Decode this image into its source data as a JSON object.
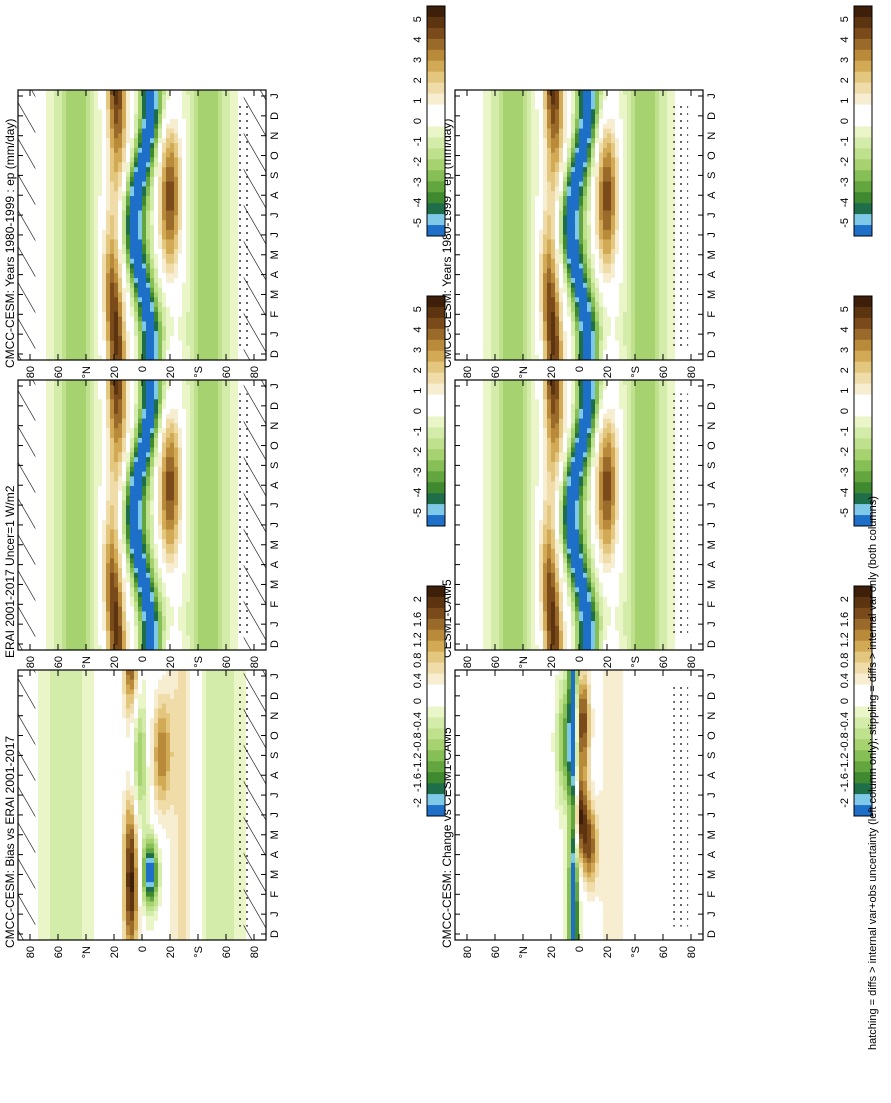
{
  "figure": {
    "footnote": "hatching = diffs > internal var+obs uncertainty (left column only); stippling = diffs > internal var only (both columns)"
  },
  "palettes": {
    "field": [
      "#3d1f0a",
      "#5c3410",
      "#7a4a1a",
      "#9a6a2a",
      "#b88a3a",
      "#d2aa55",
      "#e3c77e",
      "#efdca8",
      "#f7eed2",
      "#ffffff",
      "#ffffff",
      "#eaf5c8",
      "#d4ecaa",
      "#bfe08c",
      "#a6d270",
      "#86bf55",
      "#63a640",
      "#3f8a2e",
      "#1f6e4a",
      "#7ec8e8",
      "#1e6fc8"
    ],
    "diff": [
      "#3d1f0a",
      "#5c3410",
      "#7a4a1a",
      "#9a6a2a",
      "#b88a3a",
      "#d2aa55",
      "#e3c77e",
      "#efdca8",
      "#f7eed2",
      "#ffffff",
      "#ffffff",
      "#eaf5c8",
      "#d4ecaa",
      "#bfe08c",
      "#a6d270",
      "#86bf55",
      "#63a640",
      "#3f8a2e",
      "#1f6e4a",
      "#7ec8e8",
      "#1e6fc8"
    ]
  },
  "axes": {
    "lat_ticks": [
      "80",
      "60",
      "°N",
      "20",
      "0",
      "20",
      "°S",
      "60",
      "80"
    ],
    "month_ticks": [
      "D",
      "J",
      "F",
      "M",
      "A",
      "M",
      "J",
      "J",
      "A",
      "S",
      "O",
      "N",
      "D",
      "J"
    ]
  },
  "colorbars": {
    "field_labels": [
      "5",
      "4",
      "3",
      "2",
      "1",
      "0",
      "-1",
      "-2",
      "-3",
      "-4",
      "-5"
    ],
    "diff_labels": [
      "2",
      "1.6",
      "1.2",
      "0.8",
      "0.4",
      "0",
      "-0.4",
      "-0.8",
      "-1.2",
      "-1.6",
      "-2"
    ]
  },
  "chart_data": [
    {
      "type": "heatmap",
      "title": "CMCC-CESM: Years 1980-1999 : ep (mm/day)",
      "xlabel": "",
      "ylabel": "",
      "x": [
        "D",
        "J",
        "F",
        "M",
        "A",
        "M",
        "J",
        "J",
        "A",
        "S",
        "O",
        "N",
        "D",
        "J"
      ],
      "y_range": [
        -90,
        90
      ],
      "color_range": [
        -5,
        5
      ],
      "field": "mean",
      "hatching": true
    },
    {
      "type": "heatmap",
      "title": "CMCC-CESM: Years 1980-1999 : ep (mm/day)",
      "xlabel": "",
      "ylabel": "",
      "x": [
        "D",
        "J",
        "F",
        "M",
        "A",
        "M",
        "J",
        "J",
        "A",
        "S",
        "O",
        "N",
        "D",
        "J"
      ],
      "y_range": [
        -90,
        90
      ],
      "color_range": [
        -5,
        5
      ],
      "field": "mean",
      "hatching": false
    },
    {
      "type": "heatmap",
      "title": "ERAI 2001-2017 Uncer=1 W/m2",
      "xlabel": "",
      "ylabel": "",
      "x": [
        "D",
        "J",
        "F",
        "M",
        "A",
        "M",
        "J",
        "J",
        "A",
        "S",
        "O",
        "N",
        "D",
        "J"
      ],
      "y_range": [
        -90,
        90
      ],
      "color_range": [
        -5,
        5
      ],
      "field": "mean",
      "hatching": true
    },
    {
      "type": "heatmap",
      "title": "CESM1-CAM5",
      "xlabel": "",
      "ylabel": "",
      "x": [
        "D",
        "J",
        "F",
        "M",
        "A",
        "M",
        "J",
        "J",
        "A",
        "S",
        "O",
        "N",
        "D",
        "J"
      ],
      "y_range": [
        -90,
        90
      ],
      "color_range": [
        -5,
        5
      ],
      "field": "mean",
      "hatching": false
    },
    {
      "type": "heatmap",
      "title": "CMCC-CESM: Bias vs ERAI 2001-2017",
      "xlabel": "",
      "ylabel": "",
      "x": [
        "D",
        "J",
        "F",
        "M",
        "A",
        "M",
        "J",
        "J",
        "A",
        "S",
        "O",
        "N",
        "D",
        "J"
      ],
      "y_range": [
        -90,
        90
      ],
      "color_range": [
        -2,
        2
      ],
      "field": "bias",
      "hatching": true
    },
    {
      "type": "heatmap",
      "title": "CMCC-CESM: Change vs CESM1-CAM5",
      "xlabel": "",
      "ylabel": "",
      "x": [
        "D",
        "J",
        "F",
        "M",
        "A",
        "M",
        "J",
        "J",
        "A",
        "S",
        "O",
        "N",
        "D",
        "J"
      ],
      "y_range": [
        -90,
        90
      ],
      "color_range": [
        -2,
        2
      ],
      "field": "change",
      "hatching": false
    }
  ]
}
